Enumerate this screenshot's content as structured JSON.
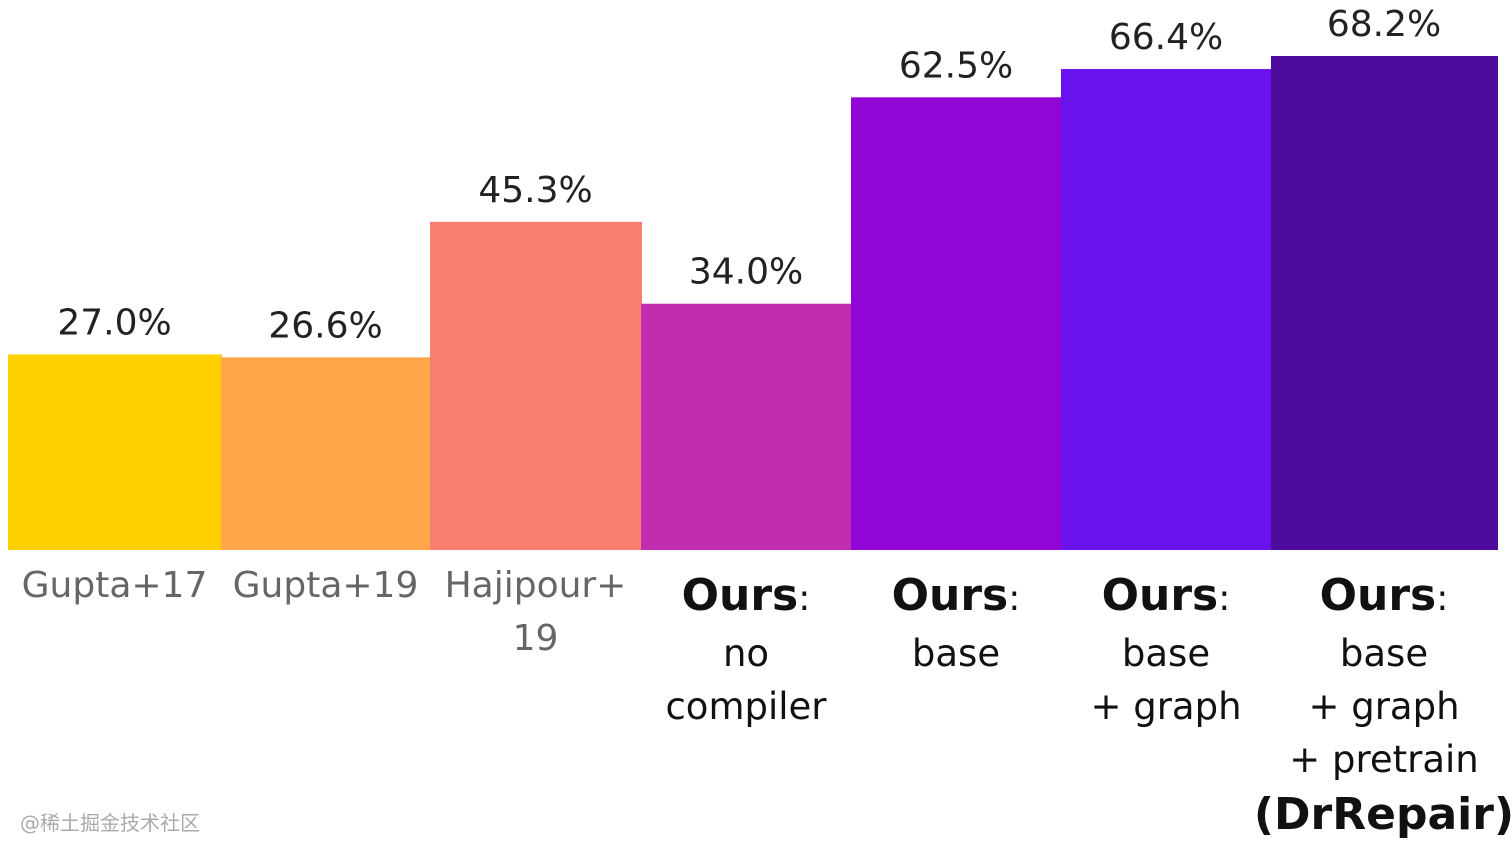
{
  "chart_data": {
    "type": "bar",
    "title": "",
    "xlabel": "",
    "ylabel": "",
    "ylim": [
      0,
      68.2
    ],
    "grid": false,
    "categories": [
      {
        "lines": [
          "Gupta+17"
        ],
        "ours": false
      },
      {
        "lines": [
          "Gupta+19"
        ],
        "ours": false
      },
      {
        "lines": [
          "Hajipour+",
          "19"
        ],
        "ours": false
      },
      {
        "prefix": "Ours",
        "colon": ":",
        "lines": [
          "no",
          "compiler"
        ],
        "ours": true
      },
      {
        "prefix": "Ours",
        "colon": ":",
        "lines": [
          "base"
        ],
        "ours": true
      },
      {
        "prefix": "Ours",
        "colon": ":",
        "lines": [
          "base",
          "+ graph"
        ],
        "ours": true
      },
      {
        "prefix": "Ours",
        "colon": ":",
        "lines": [
          "base",
          "+ graph",
          "+ pretrain"
        ],
        "bold_last": "(DrRepair)",
        "ours": true
      }
    ],
    "values": [
      27.0,
      26.6,
      45.3,
      34.0,
      62.5,
      66.4,
      68.2
    ],
    "value_labels": [
      "27.0%",
      "26.6%",
      "45.3%",
      "34.0%",
      "62.5%",
      "66.4%",
      "68.2%"
    ],
    "colors": [
      "#FFD000",
      "#FFA64A",
      "#F87E6E",
      "#C12DAF",
      "#9206D5",
      "#6A12EE",
      "#4D0C9E"
    ]
  },
  "watermark": "@稀土掘金技术社区"
}
